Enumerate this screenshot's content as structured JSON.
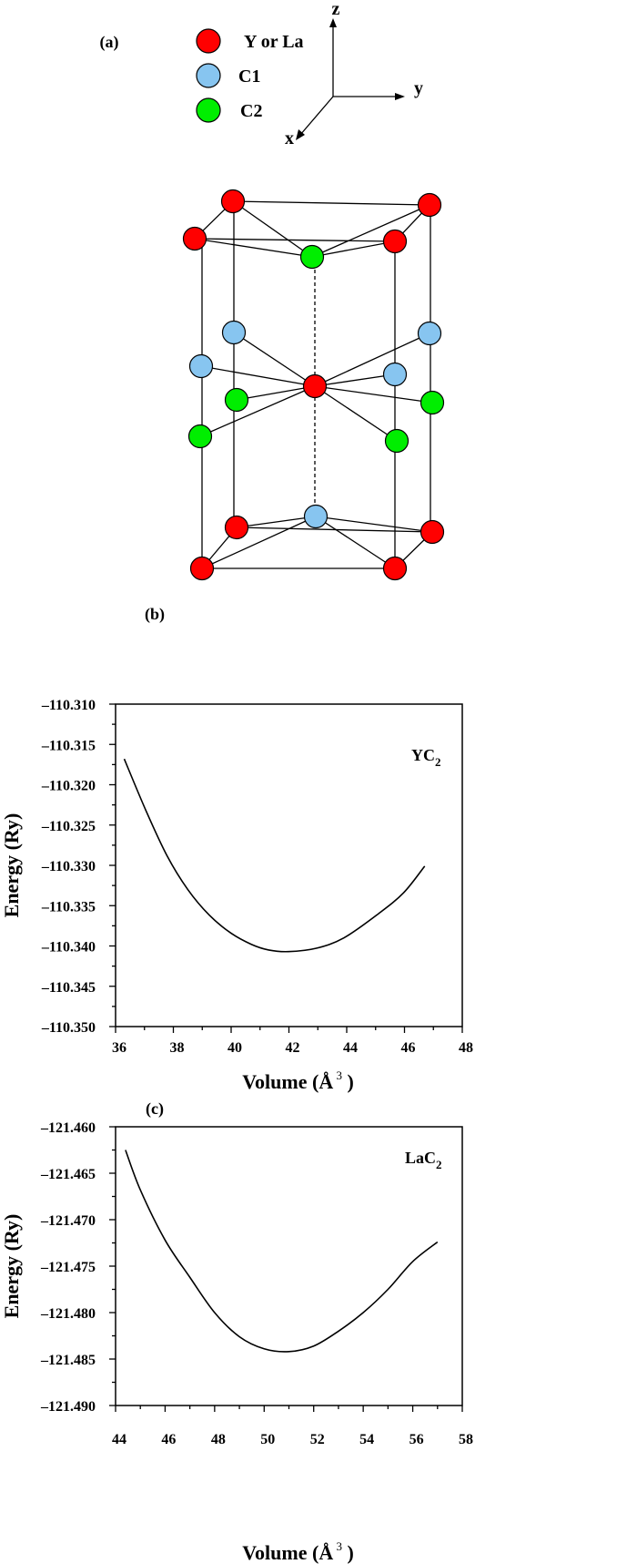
{
  "panel_a": {
    "label": "(a)",
    "legend": [
      {
        "label": "Y or La",
        "color": "#ff0000"
      },
      {
        "label": "C1",
        "color": "#87c5f0"
      },
      {
        "label": "C2",
        "color": "#00ee00"
      }
    ],
    "axes": {
      "z": "z",
      "y": "y",
      "x": "x"
    }
  },
  "chart_data": [
    {
      "panel_label": "(b)",
      "type": "line",
      "annotation": "YC",
      "annotation_sub": "2",
      "xlabel": "Volume (Å",
      "xlabel_sup": "3",
      "xlabel_close": ")",
      "ylabel": "Energy (Ry)",
      "xlim": [
        36,
        48
      ],
      "ylim": [
        -110.35,
        -110.31
      ],
      "xticks": [
        "36",
        "38",
        "40",
        "42",
        "44",
        "46",
        "48"
      ],
      "yticks": [
        "-110.310",
        "-110.315",
        "-110.320",
        "-110.325",
        "-110.330",
        "-110.335",
        "-110.340",
        "-110.345",
        "-110.350"
      ],
      "grid": false,
      "x": [
        36.3,
        37.05,
        37.78,
        38.5,
        39.25,
        39.99,
        40.7,
        41.3,
        41.98,
        42.93,
        43.9,
        45.1,
        45.97,
        46.7
      ],
      "y": [
        -110.3168,
        -110.3232,
        -110.3288,
        -110.333,
        -110.3362,
        -110.3384,
        -110.3398,
        -110.3405,
        -110.3407,
        -110.3403,
        -110.339,
        -110.336,
        -110.3334,
        -110.3301
      ]
    },
    {
      "panel_label": "(c)",
      "type": "line",
      "annotation": "LaC",
      "annotation_sub": "2",
      "xlabel": "Volume (Å",
      "xlabel_sup": "3",
      "xlabel_close": ")",
      "ylabel": "Energy (Ry)",
      "xlim": [
        44,
        58
      ],
      "ylim": [
        -121.49,
        -121.46
      ],
      "xticks": [
        "44",
        "46",
        "48",
        "50",
        "52",
        "54",
        "56",
        "58"
      ],
      "yticks": [
        "-121.460",
        "-121.465",
        "-121.470",
        "-121.475",
        "-121.480",
        "-121.485",
        "-121.490"
      ],
      "grid": false,
      "x": [
        44.4,
        45,
        46,
        47,
        48,
        49,
        50,
        51,
        52,
        53,
        54,
        55,
        56,
        57
      ],
      "y": [
        -121.4625,
        -121.4668,
        -121.4722,
        -121.4762,
        -121.48,
        -121.4826,
        -121.4839,
        -121.4842,
        -121.4836,
        -121.482,
        -121.48,
        -121.4775,
        -121.4745,
        -121.4724
      ]
    }
  ]
}
